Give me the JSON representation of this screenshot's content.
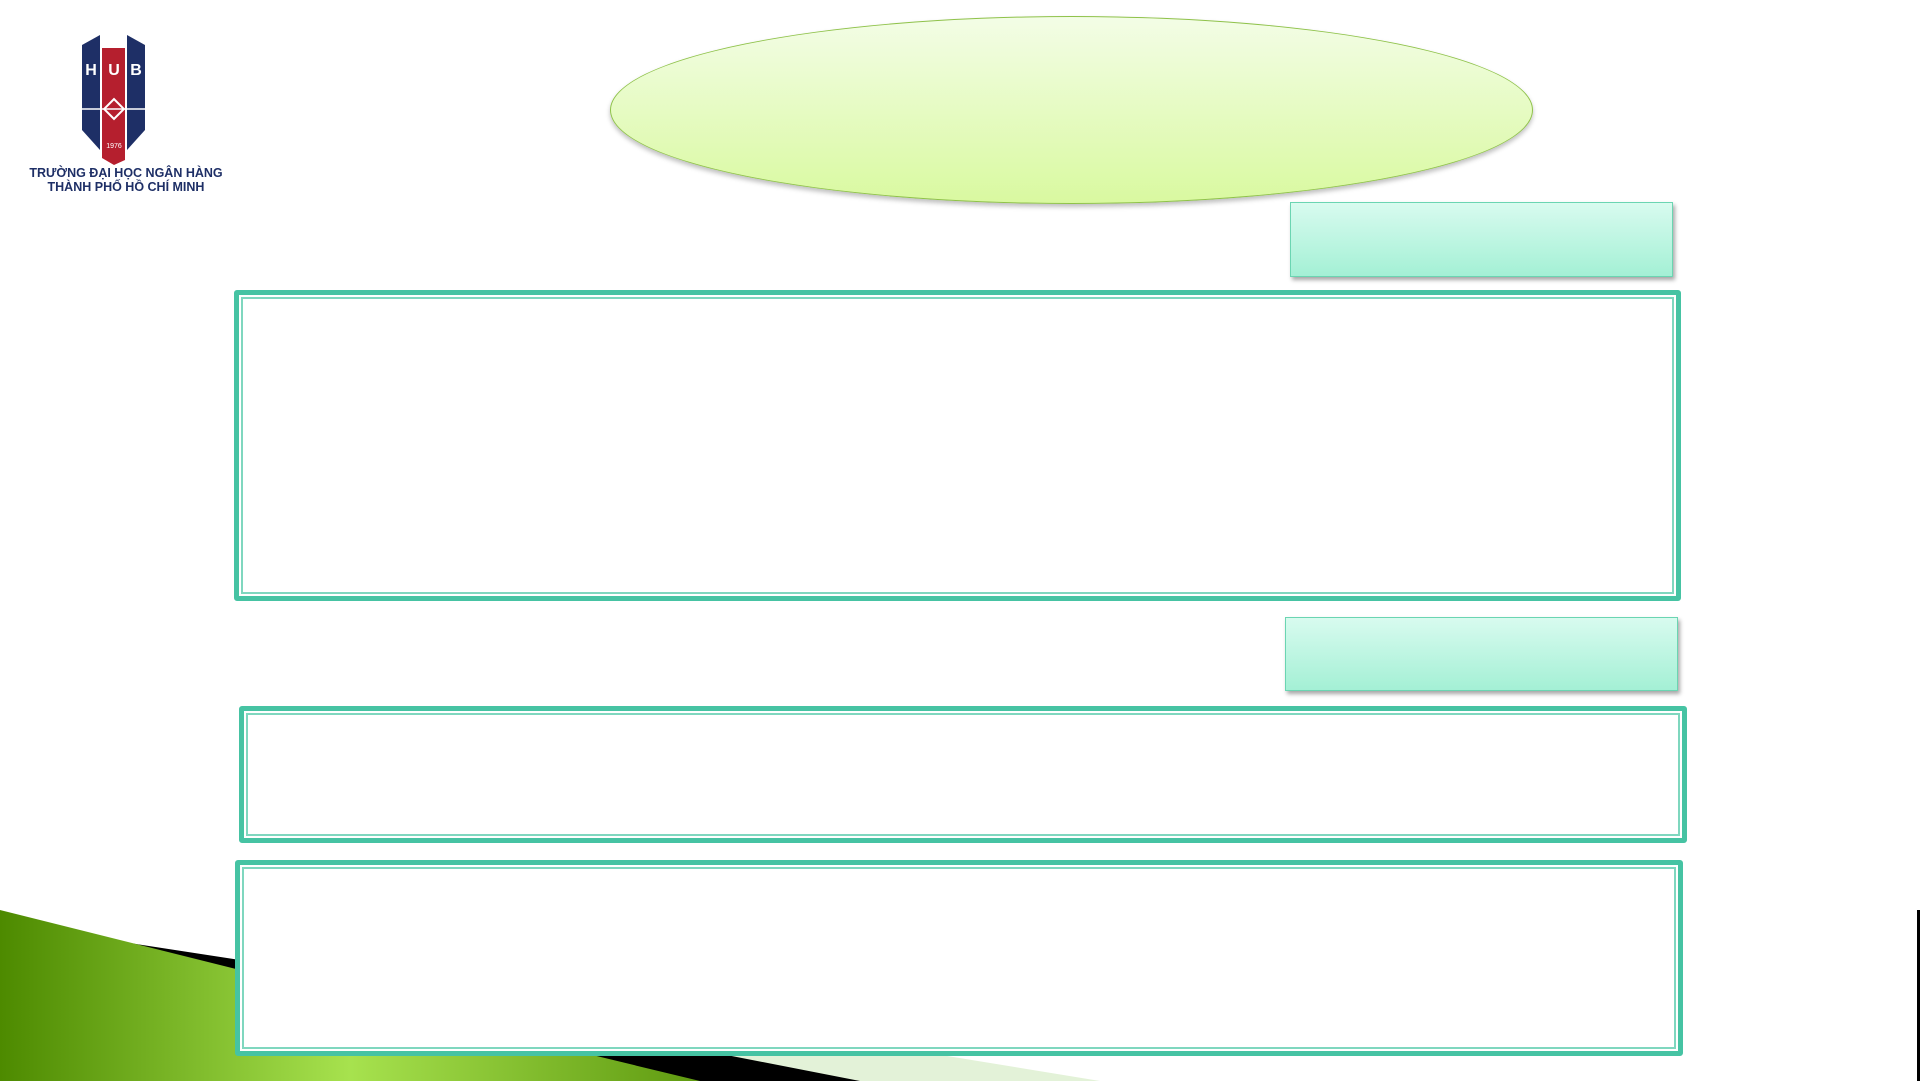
{
  "logo": {
    "letters": [
      "H",
      "U",
      "B"
    ],
    "year": "1976",
    "name_line1": "TRƯỜNG ĐẠI HỌC NGÂN HÀNG",
    "name_line2": "THÀNH PHỐ HỒ CHÍ MINH"
  },
  "colors": {
    "accent": "#46c3a3",
    "navy": "#1e2f66",
    "red": "#b51f2e",
    "green": "#7ab51d"
  }
}
